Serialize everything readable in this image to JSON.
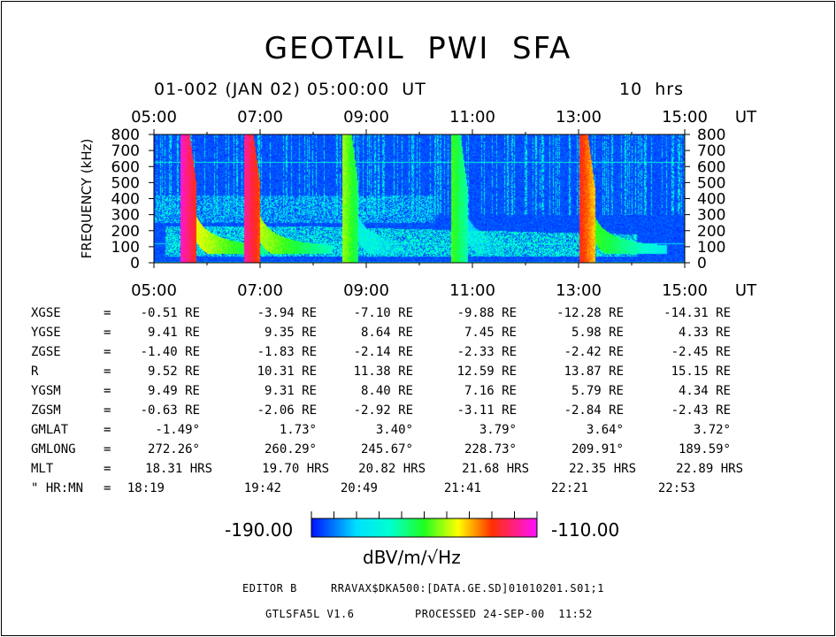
{
  "title": "GEOTAIL  PWI  SFA",
  "subtitle": "01-002 (JAN 02) 05:00:00  UT",
  "duration": "10  hrs",
  "chart_data": {
    "type": "heatmap",
    "title": "GEOTAIL  PWI  SFA",
    "x_label": "UT",
    "x_ticks": [
      "05:00",
      "07:00",
      "09:00",
      "11:00",
      "13:00",
      "15:00"
    ],
    "x_range_hours": [
      5,
      15
    ],
    "y_label": "FREQUENCY (kHz)",
    "y_ticks": [
      0,
      100,
      200,
      300,
      400,
      500,
      600,
      700,
      800
    ],
    "y_range": [
      0,
      800
    ],
    "colorbar": {
      "min_label": "-190.00",
      "max_label": "-110.00",
      "unit": "dBV/m/√Hz",
      "min": -190,
      "max": -110
    },
    "features": {
      "background_level": -185,
      "constant_line_khz": 630,
      "bursts": [
        {
          "start_hour": 5.55,
          "level": -115
        },
        {
          "start_hour": 6.75,
          "level": -118
        },
        {
          "start_hour": 8.6,
          "level": -145
        },
        {
          "start_hour": 10.65,
          "level": -150
        },
        {
          "start_hour": 13.05,
          "level": -125
        }
      ]
    }
  },
  "ephemeris": {
    "rows": [
      {
        "label": "XGSE",
        "values": [
          "-0.51 RE",
          "-3.94 RE",
          "-7.10 RE",
          "-9.88 RE",
          "-12.28 RE",
          "-14.31 RE"
        ]
      },
      {
        "label": "YGSE",
        "values": [
          "9.41 RE",
          "9.35 RE",
          "8.64 RE",
          "7.45 RE",
          "5.98 RE",
          "4.33 RE"
        ]
      },
      {
        "label": "ZGSE",
        "values": [
          "-1.40 RE",
          "-1.83 RE",
          "-2.14 RE",
          "-2.33 RE",
          "-2.42 RE",
          "-2.45 RE"
        ]
      },
      {
        "label": "R",
        "values": [
          "9.52 RE",
          "10.31 RE",
          "11.38 RE",
          "12.59 RE",
          "13.87 RE",
          "15.15 RE"
        ]
      },
      {
        "label": "YGSM",
        "values": [
          "9.49 RE",
          "9.31 RE",
          "8.40 RE",
          "7.16 RE",
          "5.79 RE",
          "4.34 RE"
        ]
      },
      {
        "label": "ZGSM",
        "values": [
          "-0.63 RE",
          "-2.06 RE",
          "-2.92 RE",
          "-3.11 RE",
          "-2.84 RE",
          "-2.43 RE"
        ]
      },
      {
        "label": "GMLAT",
        "values": [
          "-1.49°",
          "1.73°",
          "3.40°",
          "3.79°",
          "3.64°",
          "3.72°"
        ]
      },
      {
        "label": "GMLONG",
        "values": [
          "272.26°",
          "260.29°",
          "245.67°",
          "228.73°",
          "209.91°",
          "189.59°"
        ]
      },
      {
        "label": "MLT",
        "values": [
          "18.31 HRS",
          "19.70 HRS",
          "20.82 HRS",
          "21.68 HRS",
          "22.35 HRS",
          "22.89 HRS"
        ]
      },
      {
        "label": "\" HR:MN",
        "values": [
          "18:19",
          "19:42",
          "20:49",
          "21:41",
          "22:21",
          "22:53"
        ]
      }
    ]
  },
  "footer": {
    "editor": "EDITOR B",
    "path": "RRAVAX$DKA500:[DATA.GE.SD]01010201.S01;1",
    "program": "GTLSFA5L V1.6",
    "processed": "PROCESSED 24-SEP-00  11:52"
  },
  "colors": {
    "background_blue": "#1a3cff",
    "cyan": "#00ffff",
    "green": "#00ff40",
    "yellow": "#ffff00",
    "red": "#ff0000",
    "magenta": "#ff00ff"
  }
}
